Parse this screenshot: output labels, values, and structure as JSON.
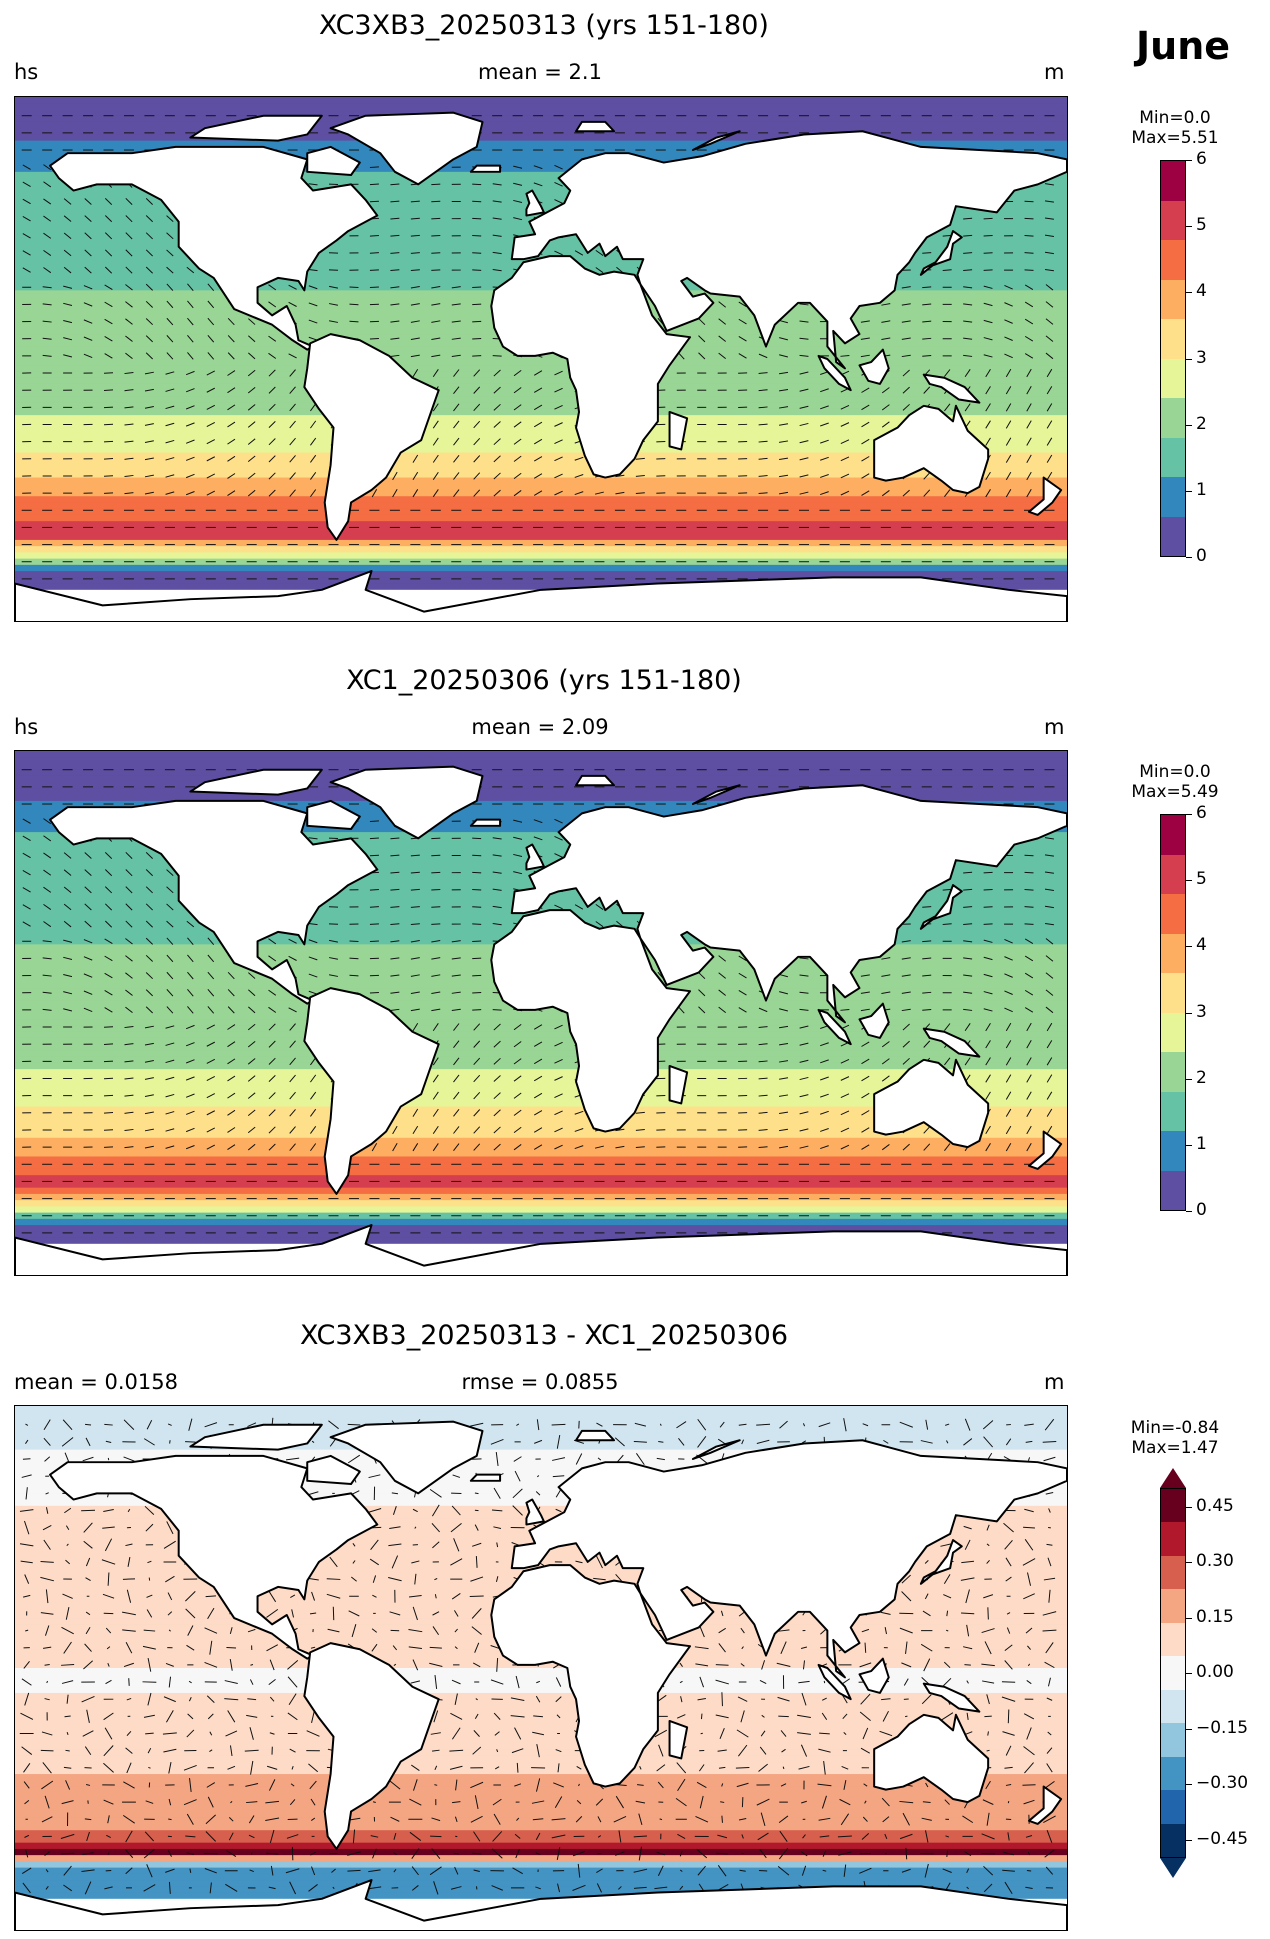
{
  "month": "June",
  "colors": {
    "spectral": [
      "#5e4fa2",
      "#3288bd",
      "#66c2a5",
      "#99d594",
      "#e6f598",
      "#fee08b",
      "#fdae61",
      "#f46d43",
      "#d53e4f",
      "#9e0142"
    ],
    "diverging": [
      "#053061",
      "#2166ac",
      "#4393c3",
      "#92c5de",
      "#d1e5f0",
      "#f7f7f7",
      "#fddbc7",
      "#f4a582",
      "#d6604d",
      "#b2182b",
      "#67001f"
    ],
    "land": "#ffffff",
    "coast": "#000000"
  },
  "panels": [
    {
      "title": "XC3XB3_20250313 (yrs 151-180)",
      "left_label": "hs",
      "center_label": "mean = 2.1",
      "right_label": "m",
      "min_text": "Min=0.0",
      "max_text": "Max=5.51",
      "colorbar_ticks": [
        "0",
        "1",
        "2",
        "3",
        "4",
        "5",
        "6"
      ]
    },
    {
      "title": "XC1_20250306 (yrs 151-180)",
      "left_label": "hs",
      "center_label": "mean = 2.09",
      "right_label": "m",
      "min_text": "Min=0.0",
      "max_text": "Max=5.49",
      "colorbar_ticks": [
        "0",
        "1",
        "2",
        "3",
        "4",
        "5",
        "6"
      ]
    },
    {
      "title": "XC3XB3_20250313 - XC1_20250306",
      "left_label": "mean = 0.0158",
      "center_label": "rmse = 0.0855",
      "right_label": "m",
      "min_text": "Min=-0.84",
      "max_text": "Max=1.47",
      "colorbar_ticks": [
        "0.45",
        "0.30",
        "0.15",
        "0.00",
        "−0.15",
        "−0.30",
        "−0.45"
      ]
    }
  ],
  "chart_data": [
    {
      "type": "heatmap",
      "title": "XC3XB3_20250313 (yrs 151-180)",
      "variable": "hs",
      "unit": "m",
      "mean": 2.1,
      "min": 0.0,
      "max": 5.51,
      "colorbar_range": [
        0,
        6
      ],
      "colormap": "Spectral_r",
      "latitude_bands": [
        {
          "lat": 80,
          "value": 0.2
        },
        {
          "lat": 60,
          "value": 1.4
        },
        {
          "lat": 40,
          "value": 1.6
        },
        {
          "lat": 20,
          "value": 1.9
        },
        {
          "lat": 0,
          "value": 2.0
        },
        {
          "lat": -20,
          "value": 2.6
        },
        {
          "lat": -35,
          "value": 3.6
        },
        {
          "lat": -45,
          "value": 4.6
        },
        {
          "lat": -52,
          "value": 5.2
        },
        {
          "lat": -58,
          "value": 3.0
        },
        {
          "lat": -65,
          "value": 0.3
        }
      ]
    },
    {
      "type": "heatmap",
      "title": "XC1_20250306 (yrs 151-180)",
      "variable": "hs",
      "unit": "m",
      "mean": 2.09,
      "min": 0.0,
      "max": 5.49,
      "colorbar_range": [
        0,
        6
      ],
      "colormap": "Spectral_r",
      "latitude_bands": [
        {
          "lat": 80,
          "value": 0.2
        },
        {
          "lat": 60,
          "value": 1.3
        },
        {
          "lat": 40,
          "value": 1.6
        },
        {
          "lat": 20,
          "value": 1.9
        },
        {
          "lat": 0,
          "value": 2.0
        },
        {
          "lat": -20,
          "value": 2.6
        },
        {
          "lat": -35,
          "value": 3.5
        },
        {
          "lat": -45,
          "value": 4.6
        },
        {
          "lat": -52,
          "value": 5.1
        },
        {
          "lat": -58,
          "value": 2.9
        },
        {
          "lat": -65,
          "value": 0.3
        }
      ]
    },
    {
      "type": "heatmap",
      "title": "XC3XB3_20250313 - XC1_20250306",
      "unit": "m",
      "mean": 0.0158,
      "rmse": 0.0855,
      "min": -0.84,
      "max": 1.47,
      "colorbar_range": [
        -0.5,
        0.5
      ],
      "colormap": "RdBu_r",
      "latitude_bands": [
        {
          "lat": 75,
          "value": -0.05
        },
        {
          "lat": 50,
          "value": 0.08
        },
        {
          "lat": 30,
          "value": 0.1
        },
        {
          "lat": 15,
          "value": 0.12
        },
        {
          "lat": 0,
          "value": 0.02
        },
        {
          "lat": -15,
          "value": 0.1
        },
        {
          "lat": -35,
          "value": 0.15
        },
        {
          "lat": -48,
          "value": 0.2
        },
        {
          "lat": -55,
          "value": 0.45
        },
        {
          "lat": -60,
          "value": -0.3
        }
      ]
    }
  ]
}
